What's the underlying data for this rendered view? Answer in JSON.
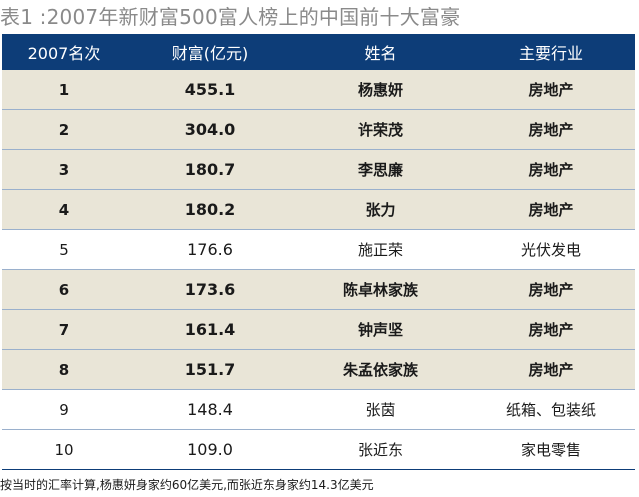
{
  "title": "表1 :2007年新财富500富人榜上的中国前十大富豪",
  "headers": {
    "rank": "2007名次",
    "wealth": "财富(亿元)",
    "name": "姓名",
    "industry": "主要行业"
  },
  "rows": [
    {
      "rank": "1",
      "wealth": "455.1",
      "name": "杨惠妍",
      "industry": "房地产",
      "highlight": true
    },
    {
      "rank": "2",
      "wealth": "304.0",
      "name": "许荣茂",
      "industry": "房地产",
      "highlight": true
    },
    {
      "rank": "3",
      "wealth": "180.7",
      "name": "李思廉",
      "industry": "房地产",
      "highlight": true
    },
    {
      "rank": "4",
      "wealth": "180.2",
      "name": "张力",
      "industry": "房地产",
      "highlight": true
    },
    {
      "rank": "5",
      "wealth": "176.6",
      "name": "施正荣",
      "industry": "光伏发电",
      "highlight": false
    },
    {
      "rank": "6",
      "wealth": "173.6",
      "name": "陈卓林家族",
      "industry": "房地产",
      "highlight": true
    },
    {
      "rank": "7",
      "wealth": "161.4",
      "name": "钟声坚",
      "industry": "房地产",
      "highlight": true
    },
    {
      "rank": "8",
      "wealth": "151.7",
      "name": "朱孟依家族",
      "industry": "房地产",
      "highlight": true
    },
    {
      "rank": "9",
      "wealth": "148.4",
      "name": "张茵",
      "industry": "纸箱、包装纸",
      "highlight": false
    },
    {
      "rank": "10",
      "wealth": "109.0",
      "name": "张近东",
      "industry": "家电零售",
      "highlight": false
    }
  ],
  "note": "按当时的汇率计算,杨惠妍身家约60亿美元,而张近东身家约14.3亿美元",
  "colors": {
    "header_bg": "#0d3d78",
    "highlight_bg": "#e9e5d7",
    "title": "#8a8a8a"
  }
}
